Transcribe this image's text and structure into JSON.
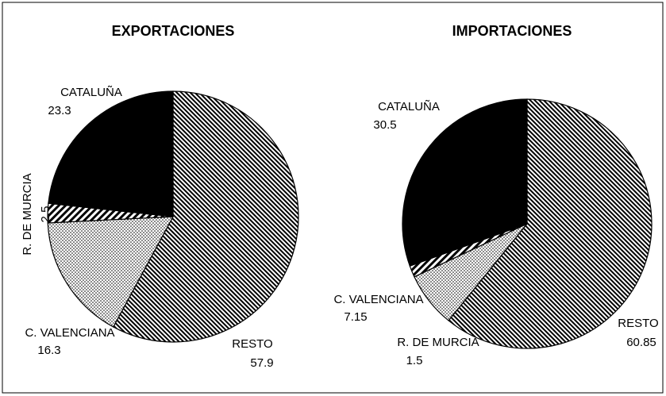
{
  "chart_data": [
    {
      "type": "pie",
      "title": "EXPORTACIONES",
      "categories": [
        "RESTO",
        "C. VALENCIANA",
        "R. DE MURCIA",
        "CATALUÑA"
      ],
      "values": [
        57.9,
        16.3,
        2.5,
        23.3
      ],
      "patterns": [
        "dense-hatch",
        "dots",
        "wide-hatch",
        "solid"
      ]
    },
    {
      "type": "pie",
      "title": "IMPORTACIONES",
      "categories": [
        "RESTO",
        "C. VALENCIANA",
        "R. DE MURCIA",
        "CATALUÑA"
      ],
      "values": [
        60.85,
        7.15,
        1.5,
        30.5
      ],
      "patterns": [
        "dense-hatch",
        "dots",
        "wide-hatch",
        "solid"
      ]
    }
  ]
}
